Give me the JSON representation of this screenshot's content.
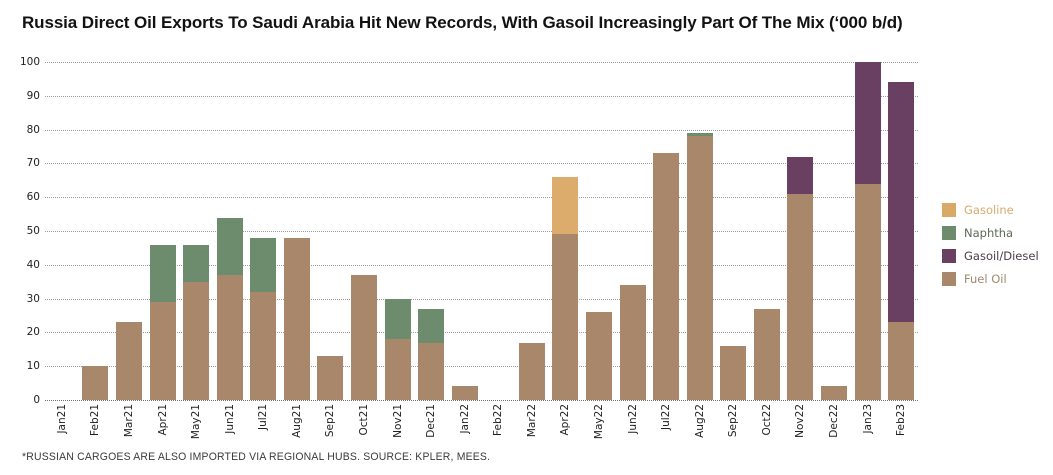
{
  "title": "Russia Direct Oil Exports To Saudi Arabia Hit New Records, With Gasoil Increasingly Part Of The Mix (‘000 b/d)",
  "footnote": "*RUSSIAN CARGOES ARE ALSO IMPORTED VIA REGIONAL HUBS. SOURCE: KPLER, MEES.",
  "chart_data": {
    "type": "bar",
    "stacked": true,
    "title": "Russia Direct Oil Exports To Saudi Arabia Hit New Records, With Gasoil Increasingly Part Of The Mix (‘000 b/d)",
    "xlabel": "",
    "ylabel": "'000 b/d",
    "ylim": [
      0,
      100
    ],
    "yticks": [
      0,
      10,
      20,
      30,
      40,
      50,
      60,
      70,
      80,
      90,
      100
    ],
    "grid": "horizontal-dotted",
    "legend_position": "right",
    "categories": [
      "Jan21",
      "Feb21",
      "Mar21",
      "Apr21",
      "May21",
      "Jun21",
      "Jul21",
      "Aug21",
      "Sep21",
      "Oct21",
      "Nov21",
      "Dec21",
      "Jan22",
      "Feb22",
      "Mar22",
      "Apr22",
      "May22",
      "Jun22",
      "Jul22",
      "Aug22",
      "Sep22",
      "Oct22",
      "Nov22",
      "Dec22",
      "Jan23",
      "Feb23"
    ],
    "stack_order": [
      "Fuel Oil",
      "Naphtha",
      "Gasoline",
      "Gasoil/Diesel"
    ],
    "series": [
      {
        "name": "Fuel Oil",
        "color": "#A8876A",
        "values": [
          0,
          10,
          23,
          29,
          35,
          37,
          32,
          48,
          13,
          37,
          18,
          17,
          4,
          0,
          17,
          49,
          26,
          34,
          73,
          78,
          16,
          27,
          61,
          4,
          64,
          23
        ]
      },
      {
        "name": "Naphtha",
        "color": "#6D8C6D",
        "values": [
          0,
          0,
          0,
          17,
          11,
          17,
          16,
          0,
          0,
          0,
          12,
          10,
          0,
          0,
          0,
          0,
          0,
          0,
          0,
          1,
          0,
          0,
          0,
          0,
          0,
          0
        ]
      },
      {
        "name": "Gasoline",
        "color": "#DCAC6C",
        "values": [
          0,
          0,
          0,
          0,
          0,
          0,
          0,
          0,
          0,
          0,
          0,
          0,
          0,
          0,
          0,
          17,
          0,
          0,
          0,
          0,
          0,
          0,
          0,
          0,
          0,
          0
        ]
      },
      {
        "name": "Gasoil/Diesel",
        "color": "#693F62",
        "values": [
          0,
          0,
          0,
          0,
          0,
          0,
          0,
          0,
          0,
          0,
          0,
          0,
          0,
          0,
          0,
          0,
          0,
          0,
          0,
          0,
          0,
          0,
          11,
          0,
          36,
          71
        ]
      }
    ],
    "legend": [
      {
        "label": "Gasoline",
        "color": "#D9A967",
        "text_color": "#D8AA6E"
      },
      {
        "label": "Naphtha",
        "color": "#6D8C6D",
        "text_color": "#5E6B57"
      },
      {
        "label": "Gasoil/Diesel",
        "color": "#693F62",
        "text_color": "#4C3B49"
      },
      {
        "label": "Fuel Oil",
        "color": "#A8876A",
        "text_color": "#9F8870"
      }
    ],
    "grid_color": "#9a9a9a",
    "axis_text_color": "#222222"
  }
}
